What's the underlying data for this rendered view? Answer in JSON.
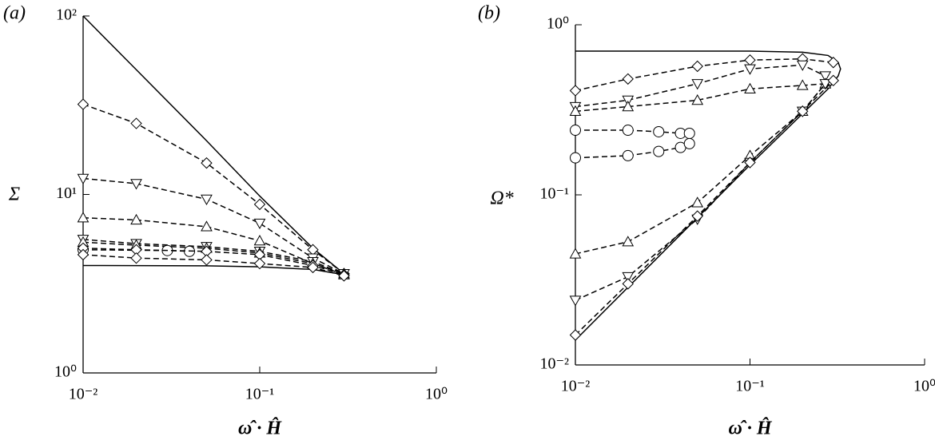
{
  "chart_data": [
    {
      "type": "line",
      "label": "(a)",
      "ylabel": "Σ",
      "xlabel": "ω̂ · Ĥ",
      "log_x": true,
      "log_y": true,
      "xlim": [
        0.01,
        1
      ],
      "ylim": [
        1,
        100
      ],
      "xticks": [
        {
          "value": 0.01,
          "label": "10⁻²"
        },
        {
          "value": 0.1,
          "label": "10⁻¹"
        },
        {
          "value": 1,
          "label": "10⁰"
        }
      ],
      "yticks": [
        {
          "value": 1,
          "label": "10⁰"
        },
        {
          "value": 10,
          "label": "10¹"
        },
        {
          "value": 100,
          "label": "10²"
        }
      ],
      "series": [
        {
          "style": "solid",
          "marker": "none",
          "color": "#000",
          "x": [
            0.01,
            0.02,
            0.05,
            0.1,
            0.2,
            0.3,
            0.32
          ],
          "values": [
            100,
            50,
            20,
            9.8,
            5,
            3.6,
            3.5
          ]
        },
        {
          "style": "solid",
          "marker": "none",
          "color": "#000",
          "x": [
            0.01,
            0.05,
            0.1,
            0.2,
            0.3,
            0.32
          ],
          "values": [
            4,
            3.98,
            3.93,
            3.8,
            3.55,
            3.5
          ]
        },
        {
          "style": "dashed",
          "marker": "diamond",
          "color": "#000",
          "x": [
            0.01,
            0.02,
            0.05,
            0.1,
            0.2,
            0.3
          ],
          "values": [
            32,
            25,
            15,
            8.8,
            4.9,
            3.6
          ]
        },
        {
          "style": "dashed",
          "marker": "triangle-down",
          "color": "#000",
          "x": [
            0.01,
            0.02,
            0.05,
            0.1,
            0.2,
            0.3
          ],
          "values": [
            12.3,
            11.5,
            9.4,
            6.9,
            4.4,
            3.6
          ]
        },
        {
          "style": "dashed",
          "marker": "triangle-up",
          "color": "#000",
          "x": [
            0.01,
            0.02,
            0.05,
            0.1,
            0.2,
            0.3
          ],
          "values": [
            7.4,
            7.2,
            6.6,
            5.5,
            4.1,
            3.55
          ]
        },
        {
          "style": "dashed",
          "marker": "triangle-down",
          "color": "#000",
          "x": [
            0.01,
            0.02,
            0.05,
            0.1,
            0.2,
            0.3
          ],
          "values": [
            5.6,
            5.3,
            5.1,
            4.8,
            4.2,
            3.6
          ]
        },
        {
          "style": "dashed",
          "marker": "triangle-up",
          "color": "#000",
          "x": [
            0.01,
            0.02,
            0.05,
            0.1,
            0.2,
            0.3
          ],
          "values": [
            5.4,
            5.2,
            5.0,
            4.7,
            4.1,
            3.6
          ]
        },
        {
          "style": "dashed",
          "marker": "circle",
          "color": "#000",
          "x": [
            0.01,
            0.03,
            0.04
          ],
          "values": [
            4.9,
            4.85,
            4.8
          ]
        },
        {
          "style": "dashed",
          "marker": "diamond",
          "color": "#000",
          "x": [
            0.01,
            0.02,
            0.05,
            0.1,
            0.2,
            0.3
          ],
          "values": [
            5.0,
            4.9,
            4.8,
            4.6,
            4.0,
            3.55
          ]
        },
        {
          "style": "dashed",
          "marker": "diamond",
          "color": "#000",
          "x": [
            0.01,
            0.02,
            0.05,
            0.1,
            0.2,
            0.3
          ],
          "values": [
            4.6,
            4.4,
            4.3,
            4.1,
            3.9,
            3.5
          ]
        }
      ]
    },
    {
      "type": "line",
      "label": "(b)",
      "ylabel": "Ω*",
      "xlabel": "ω̂ · Ĥ",
      "log_x": true,
      "log_y": true,
      "xlim": [
        0.01,
        1
      ],
      "ylim": [
        0.01,
        1
      ],
      "xticks": [
        {
          "value": 0.01,
          "label": "10⁻²"
        },
        {
          "value": 0.1,
          "label": "10⁻¹"
        },
        {
          "value": 1,
          "label": "10⁰"
        }
      ],
      "yticks": [
        {
          "value": 0.01,
          "label": "10⁻²"
        },
        {
          "value": 0.1,
          "label": "10⁻¹"
        },
        {
          "value": 1,
          "label": "10⁰"
        }
      ],
      "series": [
        {
          "style": "solid",
          "marker": "none",
          "color": "#000",
          "x": [
            0.01,
            0.1,
            0.2,
            0.28,
            0.32,
            0.33,
            0.32,
            0.28,
            0.2,
            0.1,
            0.01
          ],
          "values": [
            0.7,
            0.7,
            0.69,
            0.66,
            0.6,
            0.55,
            0.5,
            0.42,
            0.3,
            0.15,
            0.014
          ]
        },
        {
          "style": "dashed",
          "marker": "diamond",
          "color": "#000",
          "x": [
            0.01,
            0.02,
            0.05,
            0.1,
            0.2,
            0.3
          ],
          "values": [
            0.41,
            0.48,
            0.57,
            0.62,
            0.63,
            0.6
          ]
        },
        {
          "style": "dashed",
          "marker": "triangle-down",
          "color": "#000",
          "x": [
            0.01,
            0.02,
            0.05,
            0.1,
            0.2,
            0.27
          ],
          "values": [
            0.33,
            0.36,
            0.45,
            0.55,
            0.58,
            0.5
          ]
        },
        {
          "style": "dashed",
          "marker": "triangle-up",
          "color": "#000",
          "x": [
            0.01,
            0.02,
            0.05,
            0.1,
            0.2,
            0.27
          ],
          "values": [
            0.31,
            0.33,
            0.36,
            0.42,
            0.44,
            0.45
          ]
        },
        {
          "style": "dashed",
          "marker": "circle",
          "color": "#000",
          "x": [
            0.01,
            0.02,
            0.03,
            0.04,
            0.045
          ],
          "values": [
            0.24,
            0.24,
            0.235,
            0.23,
            0.23
          ]
        },
        {
          "style": "dashed",
          "marker": "circle",
          "color": "#000",
          "x": [
            0.01,
            0.02,
            0.03,
            0.04,
            0.045
          ],
          "values": [
            0.165,
            0.17,
            0.18,
            0.19,
            0.2
          ]
        },
        {
          "style": "dashed",
          "marker": "triangle-up",
          "color": "#000",
          "x": [
            0.01,
            0.02,
            0.05,
            0.1,
            0.2,
            0.27
          ],
          "values": [
            0.045,
            0.053,
            0.09,
            0.17,
            0.31,
            0.45
          ]
        },
        {
          "style": "dashed",
          "marker": "triangle-down",
          "color": "#000",
          "x": [
            0.01,
            0.02,
            0.05,
            0.1,
            0.2,
            0.27
          ],
          "values": [
            0.024,
            0.033,
            0.072,
            0.155,
            0.31,
            0.45
          ]
        },
        {
          "style": "dashed",
          "marker": "diamond",
          "color": "#000",
          "x": [
            0.01,
            0.02,
            0.05,
            0.1,
            0.2,
            0.3
          ],
          "values": [
            0.015,
            0.03,
            0.075,
            0.155,
            0.31,
            0.47
          ]
        }
      ]
    }
  ]
}
